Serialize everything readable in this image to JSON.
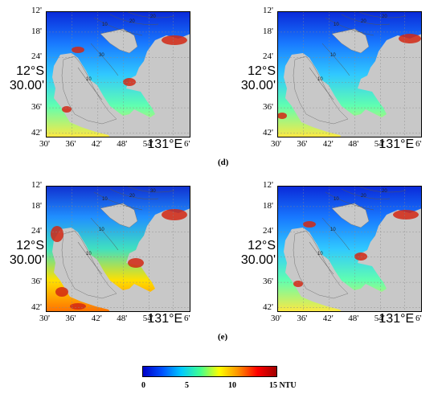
{
  "panels": [
    {
      "id": "a",
      "letter": "",
      "lat_ticks": [
        "12'",
        "18'",
        "24'",
        "30.00'",
        "36'",
        "42'"
      ],
      "lat_big": "12°S",
      "lon_ticks": [
        "30'",
        "36'",
        "42'",
        "48'",
        "54'",
        "131°E",
        "6'"
      ],
      "contours": [
        "10",
        "20",
        "20",
        "30",
        "10"
      ]
    },
    {
      "id": "b",
      "letter": "(d)",
      "lat_ticks": [
        "12'",
        "18'",
        "24'",
        "30.00'",
        "36'",
        "42'"
      ],
      "lat_big": "12°S",
      "lon_ticks": [
        "30'",
        "36'",
        "42'",
        "48'",
        "54'",
        "131°E",
        "6'"
      ],
      "contours": [
        "10",
        "20",
        "20",
        "10",
        "10"
      ]
    },
    {
      "id": "c",
      "letter": "",
      "lat_ticks": [
        "12'",
        "18'",
        "24'",
        "30.00'",
        "36'",
        "42'"
      ],
      "lat_big": "12°S",
      "lon_ticks": [
        "30'",
        "36'",
        "42'",
        "48'",
        "54'",
        "131°E",
        "6'"
      ],
      "contours": [
        "10",
        "20",
        "30",
        "10",
        "10"
      ]
    },
    {
      "id": "d",
      "letter": "(e)",
      "lat_ticks": [
        "12'",
        "18'",
        "24'",
        "30.00'",
        "36'",
        "42'"
      ],
      "lat_big": "12°S",
      "lon_ticks": [
        "30'",
        "36'",
        "42'",
        "48'",
        "54'",
        "131°E",
        "6'"
      ],
      "contours": [
        "10",
        "20",
        "20",
        "10",
        "10"
      ]
    }
  ],
  "colorbar": {
    "min_label": "0",
    "ticks": [
      "0",
      "5",
      "10",
      "15 NTU"
    ],
    "stops": [
      "#0000c8",
      "#0050ff",
      "#00c8ff",
      "#40ff90",
      "#ffff00",
      "#ff9000",
      "#ff0000",
      "#a00000"
    ]
  },
  "colors": {
    "land": "#c8c8c8",
    "deep_water": "#1e3cdc",
    "coast_turbid": "#d22814"
  }
}
